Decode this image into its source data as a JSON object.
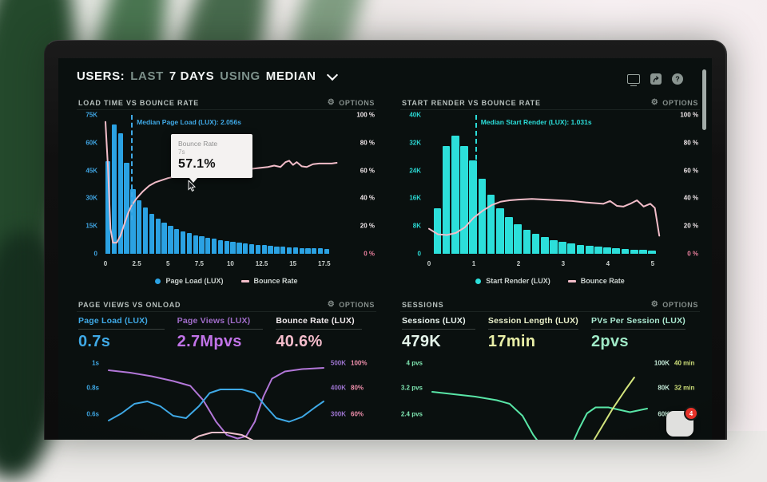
{
  "icons": {
    "gear_glyph": "⚙",
    "help_glyph": "?"
  },
  "header": {
    "parts": [
      {
        "text": "USERS:"
      },
      {
        "text": "LAST"
      },
      {
        "text": "7 DAYS"
      },
      {
        "text": "USING"
      },
      {
        "text": "MEDIAN"
      }
    ]
  },
  "chat": {
    "badge_count": "4"
  },
  "panels": {
    "load_time": {
      "title": "LOAD TIME VS BOUNCE RATE",
      "options_label": "OPTIONS",
      "tooltip": {
        "title": "Bounce Rate",
        "sub": "7s",
        "value": "57.1%"
      },
      "legend": [
        {
          "label": "Page Load (LUX)",
          "color": "#2ba2e3",
          "shape": "dot"
        },
        {
          "label": "Bounce Rate",
          "color": "#f2bdc9",
          "shape": "dash"
        }
      ],
      "chart_data": {
        "type": "histogram",
        "x_max": 18.6,
        "bar_start": 0,
        "bar_step": 0.5,
        "bar_color": "#2ba2e3",
        "bar_values_k": [
          50,
          70,
          65,
          49,
          35,
          29,
          25,
          21.5,
          19,
          17,
          15,
          13.5,
          12,
          11,
          10,
          9.3,
          8.6,
          8,
          7.4,
          6.9,
          6.4,
          6,
          5.6,
          5.2,
          4.9,
          4.6,
          4.3,
          4,
          3.8,
          3.6,
          3.4,
          3.2,
          3.1,
          3,
          2.9,
          2.8
        ],
        "y_left_max_k": 75,
        "y_left_ticks": [
          "75K",
          "60K",
          "45K",
          "30K",
          "15K",
          "0"
        ],
        "y_right_ticks": [
          "100 %",
          "80 %",
          "60 %",
          "40 %",
          "20 %",
          "0 %"
        ],
        "axis_left_color": "#3fa3e0",
        "axis_right_color": "#efe6e9",
        "axis_right_last_color": "#e97f9d",
        "x_ticks": [
          {
            "label": "0",
            "v": 0
          },
          {
            "label": "2.5",
            "v": 2.5
          },
          {
            "label": "5",
            "v": 5
          },
          {
            "label": "7.5",
            "v": 7.5
          },
          {
            "label": "10",
            "v": 10
          },
          {
            "label": "12.5",
            "v": 12.5
          },
          {
            "label": "15",
            "v": 15
          },
          {
            "label": "17.5",
            "v": 17.5
          }
        ],
        "median": {
          "v": 2.056,
          "label": "Median Page Load (LUX): 2.056s",
          "color": "#3fa9e6",
          "height_pct": 76
        },
        "line": {
          "name": "Bounce Rate",
          "color": "#f2bdc9",
          "points_pct": [
            [
              0,
              95
            ],
            [
              0.2,
              62
            ],
            [
              0.4,
              18
            ],
            [
              0.6,
              8
            ],
            [
              0.9,
              8
            ],
            [
              1.2,
              13
            ],
            [
              1.5,
              21
            ],
            [
              1.8,
              29
            ],
            [
              2.1,
              35
            ],
            [
              2.5,
              40
            ],
            [
              3,
              45
            ],
            [
              3.5,
              49
            ],
            [
              4,
              51.5
            ],
            [
              4.5,
              53
            ],
            [
              5,
              54.5
            ],
            [
              5.5,
              55.5
            ],
            [
              6,
              56
            ],
            [
              6.5,
              56.5
            ],
            [
              7,
              57.1
            ],
            [
              7.5,
              57
            ],
            [
              8,
              57
            ],
            [
              8.5,
              57.5
            ],
            [
              9,
              56.5
            ],
            [
              9.5,
              57.5
            ],
            [
              10,
              58.5
            ],
            [
              10.5,
              59.5
            ],
            [
              11,
              60
            ],
            [
              11.5,
              61
            ],
            [
              12,
              61.5
            ],
            [
              12.5,
              62
            ],
            [
              13,
              62.5
            ],
            [
              13.5,
              63.5
            ],
            [
              14,
              62.5
            ],
            [
              14.4,
              66
            ],
            [
              14.7,
              67
            ],
            [
              15,
              64
            ],
            [
              15.3,
              66
            ],
            [
              15.7,
              63
            ],
            [
              16.1,
              62.5
            ],
            [
              16.6,
              64.5
            ],
            [
              17.1,
              65
            ],
            [
              17.6,
              65
            ],
            [
              18.1,
              65
            ],
            [
              18.5,
              65.5
            ]
          ]
        }
      }
    },
    "start_render": {
      "title": "START RENDER VS BOUNCE RATE",
      "options_label": "OPTIONS",
      "legend": [
        {
          "label": "Start Render (LUX)",
          "color": "#2cdfda",
          "shape": "dot"
        },
        {
          "label": "Bounce Rate",
          "color": "#f2bdc9",
          "shape": "dash"
        }
      ],
      "chart_data": {
        "type": "histogram",
        "x_max": 5.2,
        "bar_start": 0.1,
        "bar_step": 0.2,
        "bar_color": "#2cdfda",
        "bar_values_k": [
          13,
          31,
          34,
          31,
          27,
          21.5,
          17,
          13,
          10.5,
          8.5,
          7,
          5.8,
          4.8,
          4,
          3.4,
          3,
          2.6,
          2.3,
          2,
          1.8,
          1.6,
          1.4,
          1.2,
          1.1,
          1
        ],
        "y_left_max_k": 40,
        "y_left_ticks": [
          "40K",
          "32K",
          "24K",
          "16K",
          "8K",
          "0"
        ],
        "y_right_ticks": [
          "100 %",
          "80 %",
          "60 %",
          "40 %",
          "20 %",
          "0 %"
        ],
        "axis_left_color": "#2bd8d3",
        "axis_right_color": "#efe6e9",
        "axis_right_last_color": "#e97f9d",
        "x_ticks": [
          {
            "label": "0",
            "v": 0
          },
          {
            "label": "1",
            "v": 1
          },
          {
            "label": "2",
            "v": 2
          },
          {
            "label": "3",
            "v": 3
          },
          {
            "label": "4",
            "v": 4
          },
          {
            "label": "5",
            "v": 5
          }
        ],
        "median": {
          "v": 1.031,
          "label": "Median Start Render (LUX): 1.031s",
          "color": "#2bdcd8",
          "height_pct": 32
        },
        "line": {
          "name": "Bounce Rate",
          "color": "#f2bdc9",
          "points_pct": [
            [
              0,
              18
            ],
            [
              0.2,
              14
            ],
            [
              0.4,
              13.5
            ],
            [
              0.6,
              15
            ],
            [
              0.8,
              19
            ],
            [
              1,
              26
            ],
            [
              1.2,
              31
            ],
            [
              1.4,
              35
            ],
            [
              1.6,
              37.5
            ],
            [
              1.8,
              38.5
            ],
            [
              2,
              39
            ],
            [
              2.3,
              39.5
            ],
            [
              2.6,
              39
            ],
            [
              2.9,
              38.5
            ],
            [
              3.2,
              38
            ],
            [
              3.5,
              37
            ],
            [
              3.7,
              36.5
            ],
            [
              3.9,
              36
            ],
            [
              4.05,
              38
            ],
            [
              4.2,
              34.5
            ],
            [
              4.35,
              34
            ],
            [
              4.5,
              36
            ],
            [
              4.65,
              38.5
            ],
            [
              4.8,
              34
            ],
            [
              4.95,
              36
            ],
            [
              5.05,
              33
            ],
            [
              5.15,
              13
            ]
          ]
        }
      }
    },
    "page_views": {
      "title": "PAGE VIEWS VS ONLOAD",
      "options_label": "OPTIONS",
      "stats": [
        {
          "label": "Page Load (LUX)",
          "value": "0.7s",
          "label_color": "#3fa9e6",
          "value_color": "#3fa9e6"
        },
        {
          "label": "Page Views (LUX)",
          "value": "2.7Mpvs",
          "label_color": "#a06cc9",
          "value_color": "#c173e8"
        },
        {
          "label": "Bounce Rate (LUX)",
          "value": "40.6%",
          "label_color": "#f2ebee",
          "value_color": "#f4bccb"
        }
      ],
      "chart_data": {
        "type": "lines",
        "left_color": "#3fa9e6",
        "left_labels": [
          {
            "text": "1s",
            "f": 0.06
          },
          {
            "text": "0.8s",
            "f": 0.267
          },
          {
            "text": "0.6s",
            "f": 0.487
          }
        ],
        "right_k_color": "#9d74cf",
        "right_v_color": "#ef8fac",
        "right_labels": [
          {
            "k": "500K",
            "v": "100%",
            "f": 0.06
          },
          {
            "k": "400K",
            "v": "80%",
            "f": 0.267
          },
          {
            "k": "300K",
            "v": "60%",
            "f": 0.487
          }
        ],
        "series": [
          {
            "name": "Page Views",
            "color": "#b277d8",
            "points": [
              [
                0,
                0.12
              ],
              [
                0.1,
                0.14
              ],
              [
                0.2,
                0.17
              ],
              [
                0.3,
                0.21
              ],
              [
                0.38,
                0.25
              ],
              [
                0.44,
                0.37
              ],
              [
                0.5,
                0.55
              ],
              [
                0.55,
                0.66
              ],
              [
                0.6,
                0.69
              ],
              [
                0.64,
                0.67
              ],
              [
                0.68,
                0.55
              ],
              [
                0.72,
                0.34
              ],
              [
                0.76,
                0.19
              ],
              [
                0.82,
                0.13
              ],
              [
                0.9,
                0.11
              ],
              [
                1,
                0.1
              ]
            ]
          },
          {
            "name": "Page Load",
            "color": "#3fa9e6",
            "points": [
              [
                0,
                0.54
              ],
              [
                0.06,
                0.48
              ],
              [
                0.12,
                0.4
              ],
              [
                0.18,
                0.38
              ],
              [
                0.24,
                0.42
              ],
              [
                0.3,
                0.5
              ],
              [
                0.36,
                0.52
              ],
              [
                0.42,
                0.42
              ],
              [
                0.47,
                0.31
              ],
              [
                0.52,
                0.28
              ],
              [
                0.62,
                0.28
              ],
              [
                0.68,
                0.31
              ],
              [
                0.73,
                0.42
              ],
              [
                0.78,
                0.52
              ],
              [
                0.84,
                0.55
              ],
              [
                0.9,
                0.51
              ],
              [
                0.96,
                0.43
              ],
              [
                1,
                0.38
              ]
            ]
          },
          {
            "name": "Bounce Rate",
            "color": "#f0c2cd",
            "points": [
              [
                0,
                0.83
              ],
              [
                0.15,
                0.81
              ],
              [
                0.25,
                0.78
              ],
              [
                0.35,
                0.74
              ],
              [
                0.42,
                0.67
              ],
              [
                0.48,
                0.64
              ],
              [
                0.55,
                0.64
              ],
              [
                0.62,
                0.66
              ],
              [
                0.7,
                0.73
              ],
              [
                0.8,
                0.8
              ],
              [
                1,
                0.83
              ]
            ]
          }
        ]
      }
    },
    "sessions": {
      "title": "SESSIONS",
      "options_label": "OPTIONS",
      "stats": [
        {
          "label": "Sessions (LUX)",
          "value": "479K",
          "label_color": "#e9f3ee",
          "value_color": "#e4f4ea"
        },
        {
          "label": "Session Length (LUX)",
          "value": "17min",
          "label_color": "#e9efc9",
          "value_color": "#e9efa7"
        },
        {
          "label": "PVs Per Session (LUX)",
          "value": "2pvs",
          "label_color": "#a9e7cf",
          "value_color": "#9fe9c6"
        }
      ],
      "chart_data": {
        "type": "lines",
        "left_color": "#7fe6b2",
        "left_labels": [
          {
            "text": "4 pvs",
            "f": 0.06
          },
          {
            "text": "3.2 pvs",
            "f": 0.267
          },
          {
            "text": "2.4 pvs",
            "f": 0.487
          }
        ],
        "right_k_color": "#c3e8d6",
        "right_v_color": "#cfe07a",
        "right_labels": [
          {
            "k": "100K",
            "v": "40 min",
            "f": 0.06
          },
          {
            "k": "80K",
            "v": "32 min",
            "f": 0.267
          },
          {
            "k": "60K",
            "v": "24 min",
            "f": 0.487
          }
        ],
        "series": [
          {
            "name": "PVs Per Session",
            "color": "#59e6a7",
            "points": [
              [
                0,
                0.3
              ],
              [
                0.1,
                0.32
              ],
              [
                0.2,
                0.34
              ],
              [
                0.3,
                0.37
              ],
              [
                0.36,
                0.4
              ],
              [
                0.42,
                0.5
              ],
              [
                0.47,
                0.66
              ],
              [
                0.52,
                0.78
              ],
              [
                0.56,
                0.84
              ],
              [
                0.6,
                0.84
              ],
              [
                0.64,
                0.78
              ],
              [
                0.68,
                0.62
              ],
              [
                0.72,
                0.48
              ],
              [
                0.76,
                0.43
              ],
              [
                0.82,
                0.43
              ],
              [
                0.87,
                0.45
              ],
              [
                0.92,
                0.47
              ],
              [
                1,
                0.44
              ]
            ]
          },
          {
            "name": "Session Length",
            "color": "#d4e57d",
            "points": [
              [
                0.6,
                1.1
              ],
              [
                0.68,
                0.92
              ],
              [
                0.76,
                0.68
              ],
              [
                0.84,
                0.44
              ],
              [
                0.9,
                0.28
              ],
              [
                0.94,
                0.18
              ]
            ]
          },
          {
            "name": "Sessions",
            "color": "#3fd695",
            "points": [
              [
                0,
                0.81
              ],
              [
                0.45,
                0.81
              ],
              [
                0.52,
                0.83
              ],
              [
                0.6,
                0.85
              ],
              [
                0.75,
                0.855
              ],
              [
                1,
                0.86
              ]
            ]
          },
          {
            "name": "Session Length Secondary",
            "color": "#b8c95e",
            "points": [
              [
                0.25,
                0.98
              ],
              [
                0.31,
                0.88
              ],
              [
                0.37,
                0.86
              ],
              [
                0.43,
                0.92
              ],
              [
                0.47,
                1.02
              ]
            ]
          }
        ]
      }
    }
  }
}
